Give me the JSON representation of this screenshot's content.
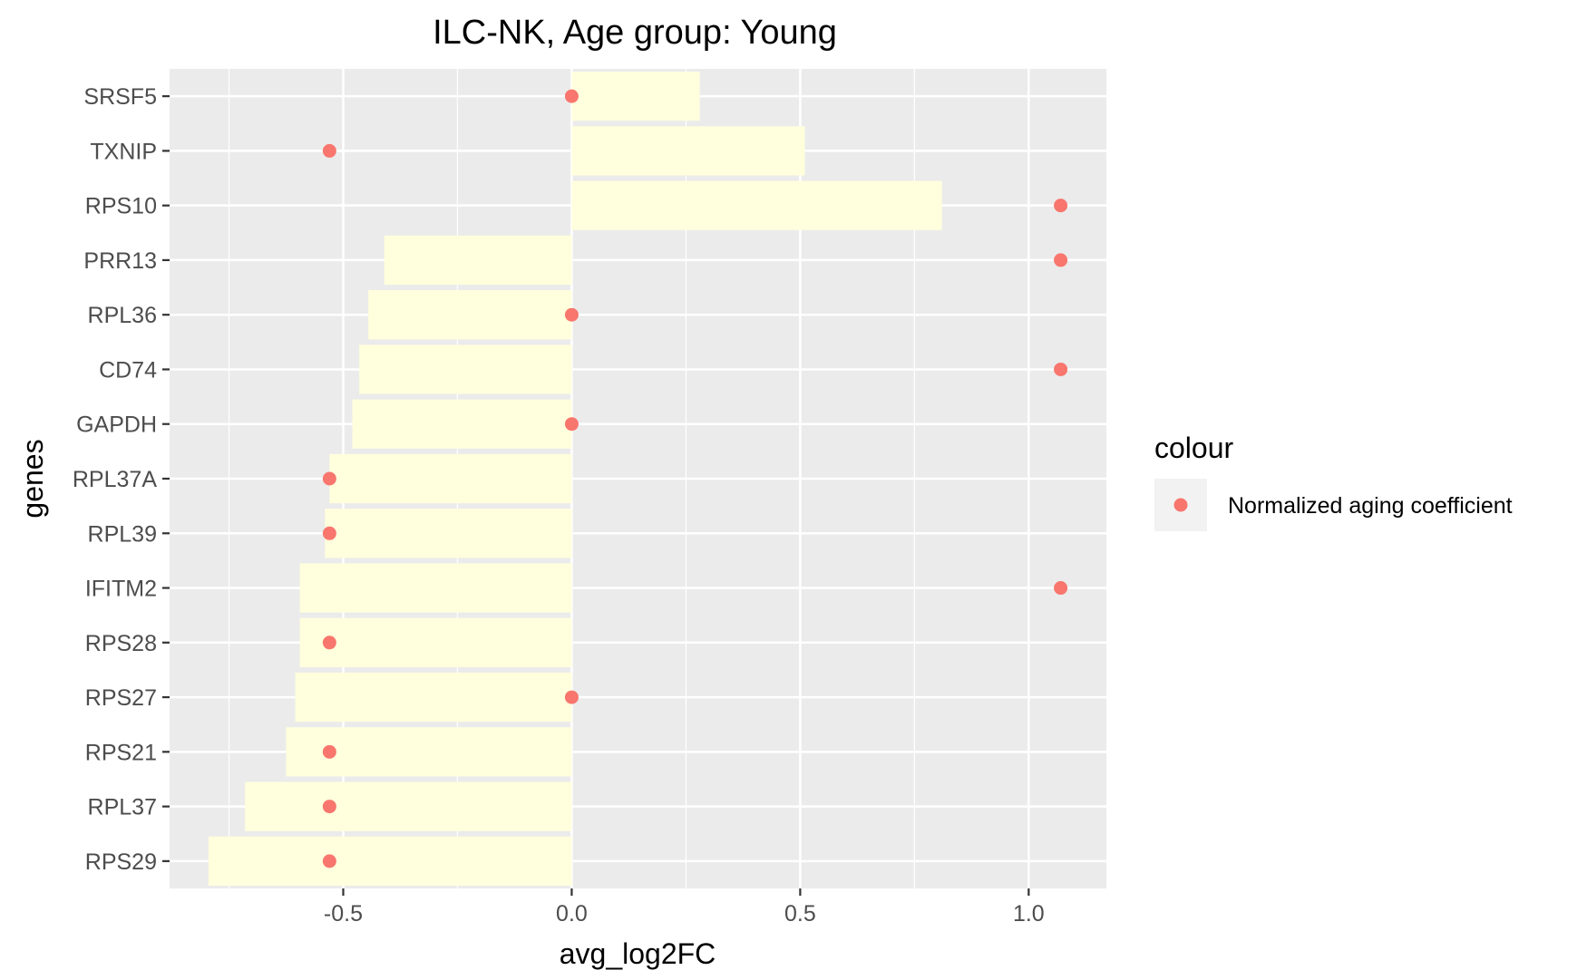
{
  "chart_data": {
    "type": "bar",
    "title": "ILC-NK, Age group: Young",
    "xlabel": "avg_log2FC",
    "ylabel": "genes",
    "xlim": [
      -0.88,
      1.17
    ],
    "x_ticks": [
      -0.5,
      0.0,
      0.5,
      1.0
    ],
    "x_tick_labels": [
      "-0.5",
      "0.0",
      "0.5",
      "1.0"
    ],
    "categories": [
      "SRSF5",
      "TXNIP",
      "RPS10",
      "PRR13",
      "RPL36",
      "CD74",
      "GAPDH",
      "RPL37A",
      "RPL39",
      "IFITM2",
      "RPS28",
      "RPS27",
      "RPS21",
      "RPL37",
      "RPS29"
    ],
    "bar_values": [
      0.28,
      0.51,
      0.81,
      -0.41,
      -0.445,
      -0.465,
      -0.48,
      -0.53,
      -0.54,
      -0.595,
      -0.595,
      -0.605,
      -0.625,
      -0.715,
      -0.795
    ],
    "point_values": [
      0.0,
      -0.53,
      1.07,
      1.07,
      0.0,
      1.07,
      0.0,
      -0.53,
      -0.53,
      1.07,
      -0.53,
      0.0,
      -0.53,
      -0.53,
      -0.53
    ],
    "bar_color": "#ffffdd",
    "point_color": "#f8766d",
    "panel_color": "#ebebeb",
    "grid": true,
    "legend": {
      "title": "colour",
      "entries": [
        "Normalized aging coefficient"
      ],
      "position": "right"
    }
  }
}
